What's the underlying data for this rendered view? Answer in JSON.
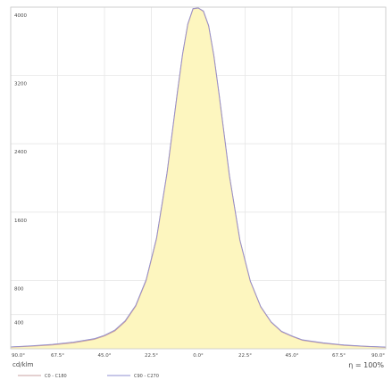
{
  "chart_data": {
    "type": "area",
    "title": "",
    "xlabel": "",
    "ylabel": "",
    "unit_label": "cd/klm",
    "efficiency_label": "η = 100%",
    "x_ticks": [
      "90.0°",
      "67.5°",
      "45.0°",
      "22.5°",
      "0.0°",
      "22.5°",
      "45.0°",
      "67.5°",
      "90.0°"
    ],
    "y_ticks": [
      "",
      "400",
      "800",
      "1600",
      "2400",
      "3200",
      "4000"
    ],
    "y_tick_values": [
      0,
      400,
      800,
      1600,
      2400,
      3200,
      4000
    ],
    "xlim": [
      -90,
      90
    ],
    "ylim": [
      0,
      4000
    ],
    "grid": true,
    "legend_placement": "bottom-left",
    "series": [
      {
        "name": "C0 - C180",
        "color": "#c9a0a0",
        "fill": "#fdf6bf",
        "x": [
          -90,
          -80,
          -70,
          -60,
          -50,
          -45,
          -40,
          -35,
          -30,
          -25,
          -20,
          -15,
          -10,
          -7.5,
          -5,
          -2.5,
          0,
          2.5,
          5,
          7.5,
          10,
          15,
          20,
          25,
          30,
          35,
          40,
          45,
          50,
          60,
          70,
          80,
          90
        ],
        "y": [
          20,
          30,
          45,
          70,
          110,
          150,
          210,
          320,
          500,
          800,
          1290,
          2050,
          3000,
          3450,
          3800,
          3980,
          3990,
          3950,
          3780,
          3430,
          2980,
          2020,
          1270,
          790,
          490,
          310,
          200,
          145,
          100,
          65,
          40,
          28,
          18
        ]
      },
      {
        "name": "C90 - C270",
        "color": "#8f8fd0",
        "x": [
          -90,
          -80,
          -70,
          -60,
          -50,
          -45,
          -40,
          -35,
          -30,
          -25,
          -20,
          -15,
          -10,
          -7.5,
          -5,
          -2.5,
          0,
          2.5,
          5,
          7.5,
          10,
          15,
          20,
          25,
          30,
          35,
          40,
          45,
          50,
          60,
          70,
          80,
          90
        ],
        "y": [
          22,
          35,
          52,
          78,
          118,
          158,
          220,
          330,
          510,
          810,
          1300,
          2060,
          3010,
          3455,
          3805,
          3985,
          3990,
          3955,
          3785,
          3435,
          2985,
          2025,
          1275,
          795,
          495,
          315,
          205,
          150,
          105,
          70,
          45,
          30,
          20
        ]
      }
    ]
  }
}
